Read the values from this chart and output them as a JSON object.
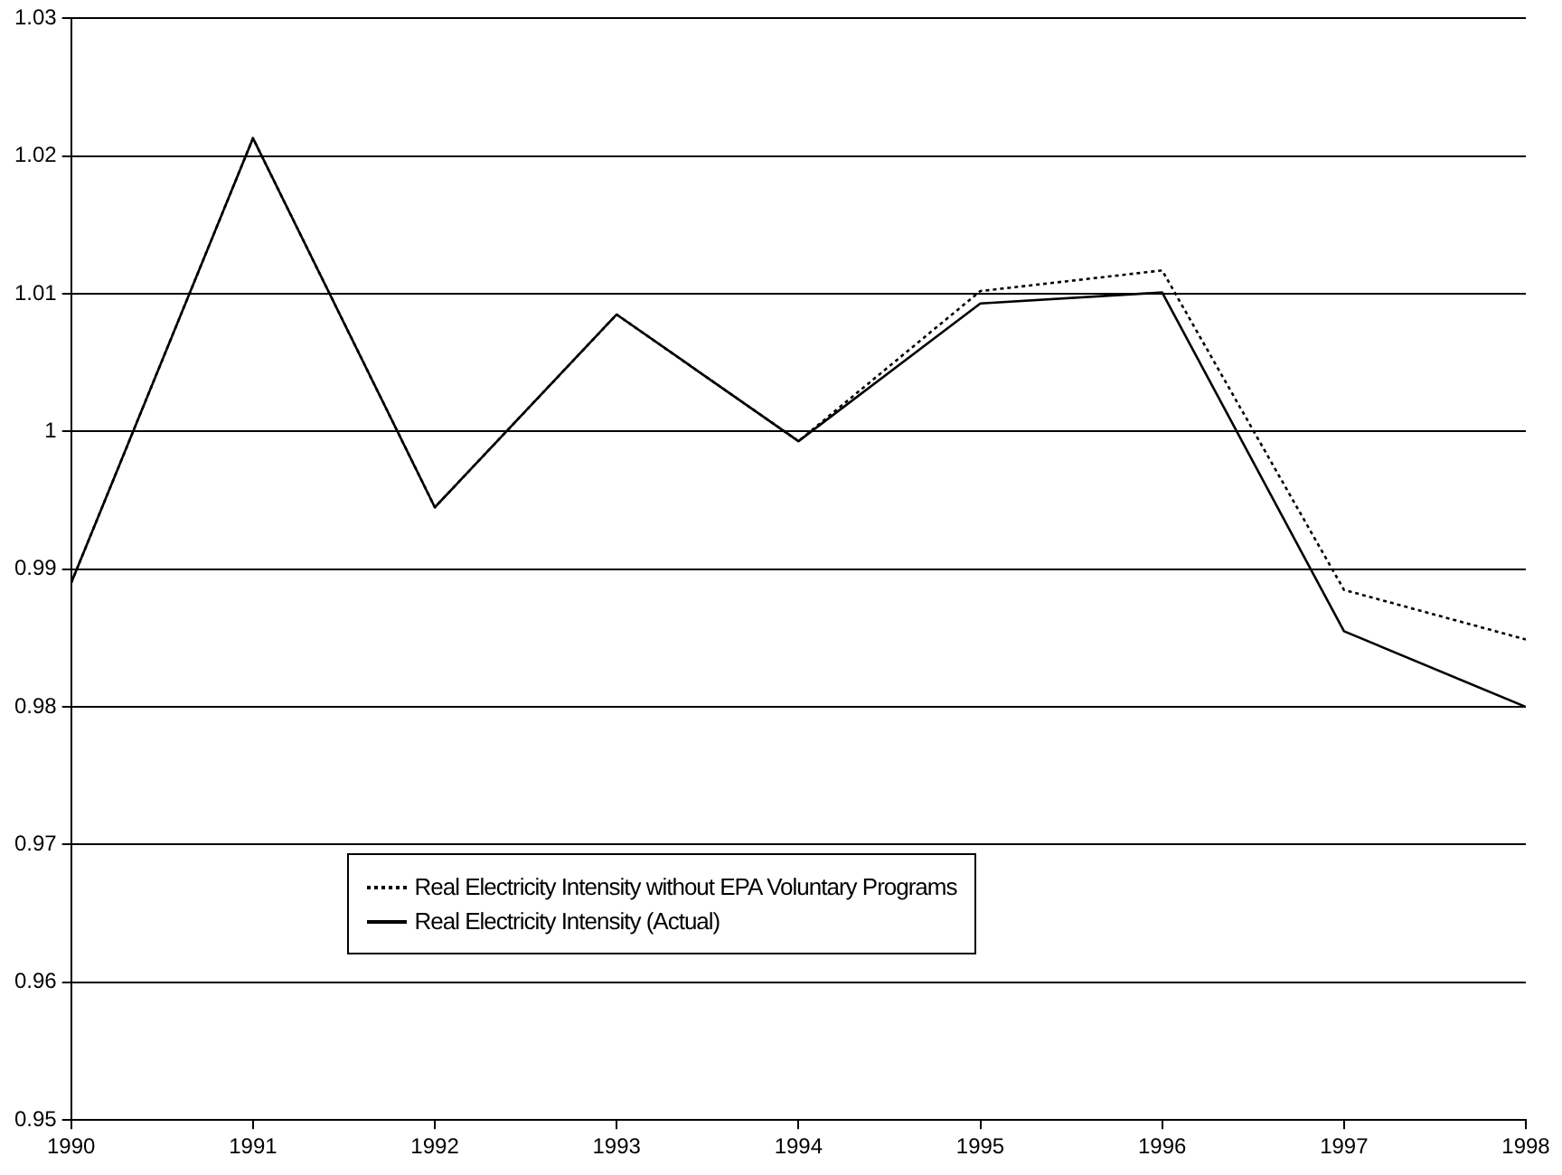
{
  "chart_data": {
    "type": "line",
    "x": [
      1990,
      1991,
      1992,
      1993,
      1994,
      1995,
      1996,
      1997,
      1998
    ],
    "series": [
      {
        "name": "Real Electricity Intensity without EPA Voluntary Programs",
        "color": "#000000",
        "line_style": "dotted",
        "values": [
          0.989,
          1.0213,
          0.9945,
          1.0085,
          0.9993,
          1.0102,
          1.0117,
          0.9885,
          0.9849
        ]
      },
      {
        "name": "Real Electricity Intensity (Actual)",
        "color": "#000000",
        "line_style": "solid",
        "values": [
          0.989,
          1.0213,
          0.9945,
          1.0085,
          0.9993,
          1.0093,
          1.0101,
          0.9855,
          0.98
        ]
      }
    ],
    "xlim": [
      1990,
      1998
    ],
    "xticks": [
      1990,
      1991,
      1992,
      1993,
      1994,
      1995,
      1996,
      1997,
      1998
    ],
    "ylim": [
      0.95,
      1.03
    ],
    "yticks": [
      0.95,
      0.96,
      0.97,
      0.98,
      0.99,
      1,
      1.01,
      1.02,
      1.03
    ],
    "grid": "y",
    "legend": "bottom",
    "marker": "none"
  }
}
